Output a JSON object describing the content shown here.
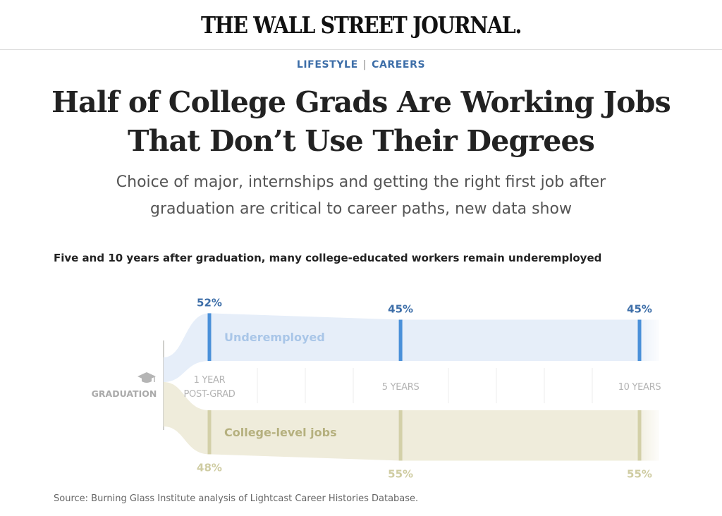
{
  "masthead": "THE WALL STREET JOURNAL.",
  "kicker": {
    "section": "LIFESTYLE",
    "separator": "|",
    "subsection": "CAREERS"
  },
  "headline": {
    "line1": "Half of College Grads Are Working Jobs",
    "line2": "That Don’t Use Their Degrees"
  },
  "dek": {
    "line1": "Choice of major, internships and getting the right first job after",
    "line2": "graduation are critical to career paths, new data show"
  },
  "chart_data": {
    "type": "area",
    "title": "Five and 10 years after graduation, many college-educated workers remain underemployed",
    "start_label": "GRADUATION",
    "x_labels": [
      {
        "year": 1,
        "lines": [
          "1 YEAR",
          "POST-GRAD"
        ]
      },
      {
        "year": 5,
        "lines": [
          "5 YEARS"
        ]
      },
      {
        "year": 10,
        "lines": [
          "10 YEARS"
        ]
      }
    ],
    "x_range": [
      1,
      10
    ],
    "series": [
      {
        "name": "Underemployed",
        "values": [
          52,
          45,
          45
        ],
        "color": "#4a90d9",
        "fill": "#e6eef9",
        "label_color": "#a9c6e8",
        "value_color": "#3d6ea8"
      },
      {
        "name": "College-level jobs",
        "values": [
          48,
          55,
          55
        ],
        "color": "#d3d0a8",
        "fill": "#efecdb",
        "label_color": "#b5b07e",
        "value_color": "#cfcca2"
      }
    ],
    "value_suffix": "%"
  },
  "source": "Source: Burning Glass Institute analysis of Lightcast Career Histories Database.",
  "icons": {
    "graduation": "graduation-cap-icon"
  }
}
